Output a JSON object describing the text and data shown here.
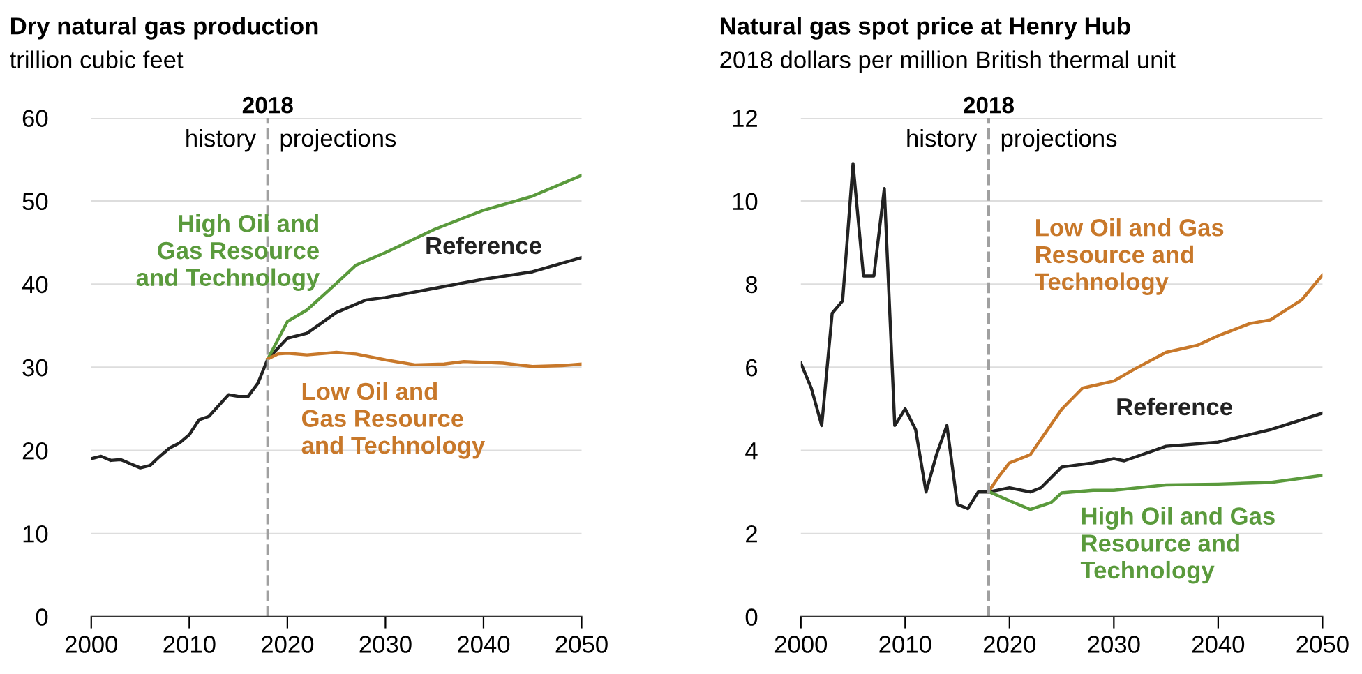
{
  "chart_data": [
    {
      "type": "line",
      "title": "Dry natural gas production",
      "subtitle": "trillion cubic feet",
      "xlim": [
        2000,
        2050
      ],
      "xticks": [
        2000,
        2010,
        2020,
        2030,
        2040,
        2050
      ],
      "ylim": [
        0,
        60
      ],
      "yticks": [
        0,
        10,
        20,
        30,
        40,
        50,
        60
      ],
      "grid": "y",
      "legend": false,
      "marker": "none",
      "line_style": "solid",
      "ref_lines": [
        {
          "axis": "x",
          "value": 2018,
          "label": "2018",
          "color": "#a0a0a0",
          "line_style": "dashed"
        }
      ],
      "annotations": [
        "history",
        "projections"
      ],
      "series": [
        {
          "name": "Reference",
          "color": "#222222",
          "x": [
            2000,
            2001,
            2002,
            2003,
            2004,
            2005,
            2006,
            2007,
            2008,
            2009,
            2010,
            2011,
            2012,
            2013,
            2014,
            2015,
            2016,
            2017,
            2018,
            2020,
            2022,
            2025,
            2028,
            2030,
            2035,
            2040,
            2045,
            2050
          ],
          "values": [
            19.0,
            19.3,
            18.8,
            18.9,
            18.4,
            17.9,
            18.2,
            19.3,
            20.3,
            20.9,
            21.9,
            23.7,
            24.1,
            25.4,
            26.7,
            26.5,
            26.5,
            28.1,
            31.0,
            33.5,
            34.1,
            36.6,
            38.1,
            38.4,
            39.5,
            40.6,
            41.5,
            43.2
          ]
        },
        {
          "name": "High Oil and Gas Resource and Technology",
          "color": "#5a9a3c",
          "x": [
            2018,
            2020,
            2022,
            2025,
            2027,
            2030,
            2035,
            2040,
            2045,
            2050
          ],
          "values": [
            31.0,
            35.5,
            36.9,
            40.1,
            42.3,
            43.8,
            46.6,
            48.9,
            50.6,
            53.1
          ]
        },
        {
          "name": "Low Oil and Gas Resource and Technology",
          "color": "#c8782a",
          "x": [
            2018,
            2019,
            2020,
            2022,
            2025,
            2027,
            2030,
            2033,
            2036,
            2038,
            2042,
            2045,
            2048,
            2050
          ],
          "values": [
            31.0,
            31.6,
            31.7,
            31.5,
            31.8,
            31.6,
            30.9,
            30.3,
            30.4,
            30.7,
            30.5,
            30.1,
            30.2,
            30.4
          ]
        }
      ]
    },
    {
      "type": "line",
      "title": "Natural gas spot price at Henry Hub",
      "subtitle": "2018 dollars per million British thermal unit",
      "xlim": [
        2000,
        2050
      ],
      "xticks": [
        2000,
        2010,
        2020,
        2030,
        2040,
        2050
      ],
      "ylim": [
        0,
        12
      ],
      "yticks": [
        0,
        2,
        4,
        6,
        8,
        10,
        12
      ],
      "grid": "y",
      "legend": false,
      "marker": "none",
      "line_style": "solid",
      "ref_lines": [
        {
          "axis": "x",
          "value": 2018,
          "label": "2018",
          "color": "#a0a0a0",
          "line_style": "dashed"
        }
      ],
      "annotations": [
        "history",
        "projections"
      ],
      "series": [
        {
          "name": "Reference",
          "color": "#222222",
          "x": [
            2000,
            2001,
            2002,
            2003,
            2004,
            2005,
            2006,
            2007,
            2008,
            2009,
            2010,
            2011,
            2012,
            2013,
            2014,
            2015,
            2016,
            2017,
            2018,
            2020,
            2022,
            2023,
            2025,
            2028,
            2030,
            2031,
            2035,
            2040,
            2045,
            2050
          ],
          "values": [
            6.1,
            5.5,
            4.6,
            7.3,
            7.6,
            10.9,
            8.2,
            8.2,
            10.3,
            4.6,
            5.0,
            4.5,
            3.0,
            3.9,
            4.6,
            2.7,
            2.6,
            3.0,
            3.0,
            3.1,
            3.0,
            3.1,
            3.6,
            3.7,
            3.8,
            3.75,
            4.1,
            4.2,
            4.5,
            4.9
          ]
        },
        {
          "name": "Low Oil and Gas Resource and Technology",
          "color": "#c8782a",
          "x": [
            2018,
            2019,
            2020,
            2022,
            2025,
            2027,
            2030,
            2032,
            2035,
            2038,
            2040,
            2043,
            2045,
            2048,
            2050
          ],
          "values": [
            3.01,
            3.38,
            3.7,
            3.9,
            4.99,
            5.5,
            5.67,
            5.96,
            6.36,
            6.53,
            6.76,
            7.05,
            7.14,
            7.62,
            8.22
          ]
        },
        {
          "name": "High Oil and Gas Resource and Technology",
          "color": "#5a9a3c",
          "x": [
            2018,
            2020,
            2022,
            2024,
            2025,
            2028,
            2030,
            2035,
            2040,
            2045,
            2050
          ],
          "values": [
            3.01,
            2.79,
            2.58,
            2.75,
            2.98,
            3.04,
            3.04,
            3.17,
            3.19,
            3.23,
            3.4
          ]
        }
      ]
    }
  ]
}
